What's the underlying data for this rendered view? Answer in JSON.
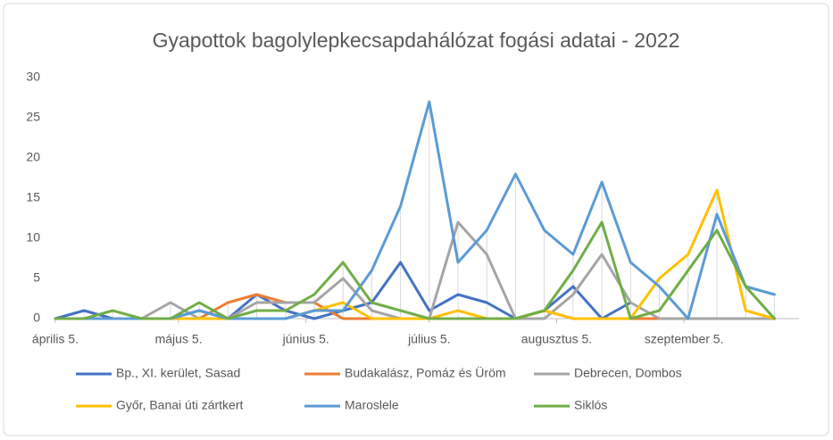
{
  "chart_data": {
    "type": "line",
    "title": "Gyapottok bagolylepkecsapdahálózat fogási adatai - 2022",
    "x": [
      "04-05",
      "04-12",
      "04-19",
      "04-26",
      "05-03",
      "05-10",
      "05-17",
      "05-24",
      "05-31",
      "06-07",
      "06-14",
      "06-21",
      "06-28",
      "07-05",
      "07-12",
      "07-19",
      "07-26",
      "08-02",
      "08-09",
      "08-16",
      "08-23",
      "08-30",
      "09-06",
      "09-13",
      "09-20",
      "09-27"
    ],
    "xlim": [
      "04-05",
      "10-03"
    ],
    "xticks": [
      {
        "value": "04-05",
        "label": "április 5."
      },
      {
        "value": "05-05",
        "label": "május 5."
      },
      {
        "value": "06-05",
        "label": "június 5."
      },
      {
        "value": "07-05",
        "label": "július 5."
      },
      {
        "value": "08-05",
        "label": "augusztus 5."
      },
      {
        "value": "09-05",
        "label": "szeptember 5."
      }
    ],
    "ylim": [
      0,
      30
    ],
    "yticks": [
      0,
      5,
      10,
      15,
      20,
      25,
      30
    ],
    "series": [
      {
        "name": "Bp., XI. kerület, Sasad",
        "color": "#4472c4",
        "values": [
          0,
          1,
          0,
          0,
          0,
          1,
          0,
          3,
          1,
          0,
          1,
          2,
          7,
          1,
          3,
          2,
          0,
          1,
          4,
          0,
          2,
          null,
          null,
          null,
          null,
          null
        ]
      },
      {
        "name": "Budakalász, Pomáz és Üröm",
        "color": "#ed7d31",
        "values": [
          0,
          0,
          0,
          0,
          0,
          0,
          2,
          3,
          2,
          2,
          0,
          0,
          0,
          0,
          0,
          0,
          0,
          1,
          0,
          0,
          0,
          0,
          0,
          0,
          0,
          0
        ]
      },
      {
        "name": "Debrecen, Dombos",
        "color": "#a5a5a5",
        "values": [
          0,
          0,
          0,
          0,
          2,
          0,
          0,
          2,
          2,
          2,
          5,
          1,
          0,
          0,
          12,
          8,
          0,
          0,
          3,
          8,
          2,
          0,
          0,
          0,
          0,
          0
        ]
      },
      {
        "name": "Győr, Banai úti zártkert",
        "color": "#ffc000",
        "values": [
          0,
          0,
          0,
          0,
          0,
          0,
          0,
          0,
          0,
          1,
          2,
          0,
          0,
          0,
          1,
          0,
          0,
          1,
          0,
          0,
          0,
          5,
          8,
          16,
          1,
          0
        ]
      },
      {
        "name": "Maroslele",
        "color": "#5b9bd5",
        "values": [
          0,
          0,
          0,
          0,
          0,
          1,
          0,
          0,
          0,
          1,
          1,
          6,
          14,
          27,
          7,
          11,
          18,
          11,
          8,
          17,
          7,
          4,
          0,
          13,
          4,
          3
        ]
      },
      {
        "name": "Siklós",
        "color": "#70ad47",
        "values": [
          0,
          0,
          1,
          0,
          0,
          2,
          0,
          1,
          1,
          3,
          7,
          2,
          1,
          0,
          0,
          0,
          0,
          1,
          6,
          12,
          0,
          1,
          6,
          11,
          4,
          0
        ]
      }
    ]
  }
}
